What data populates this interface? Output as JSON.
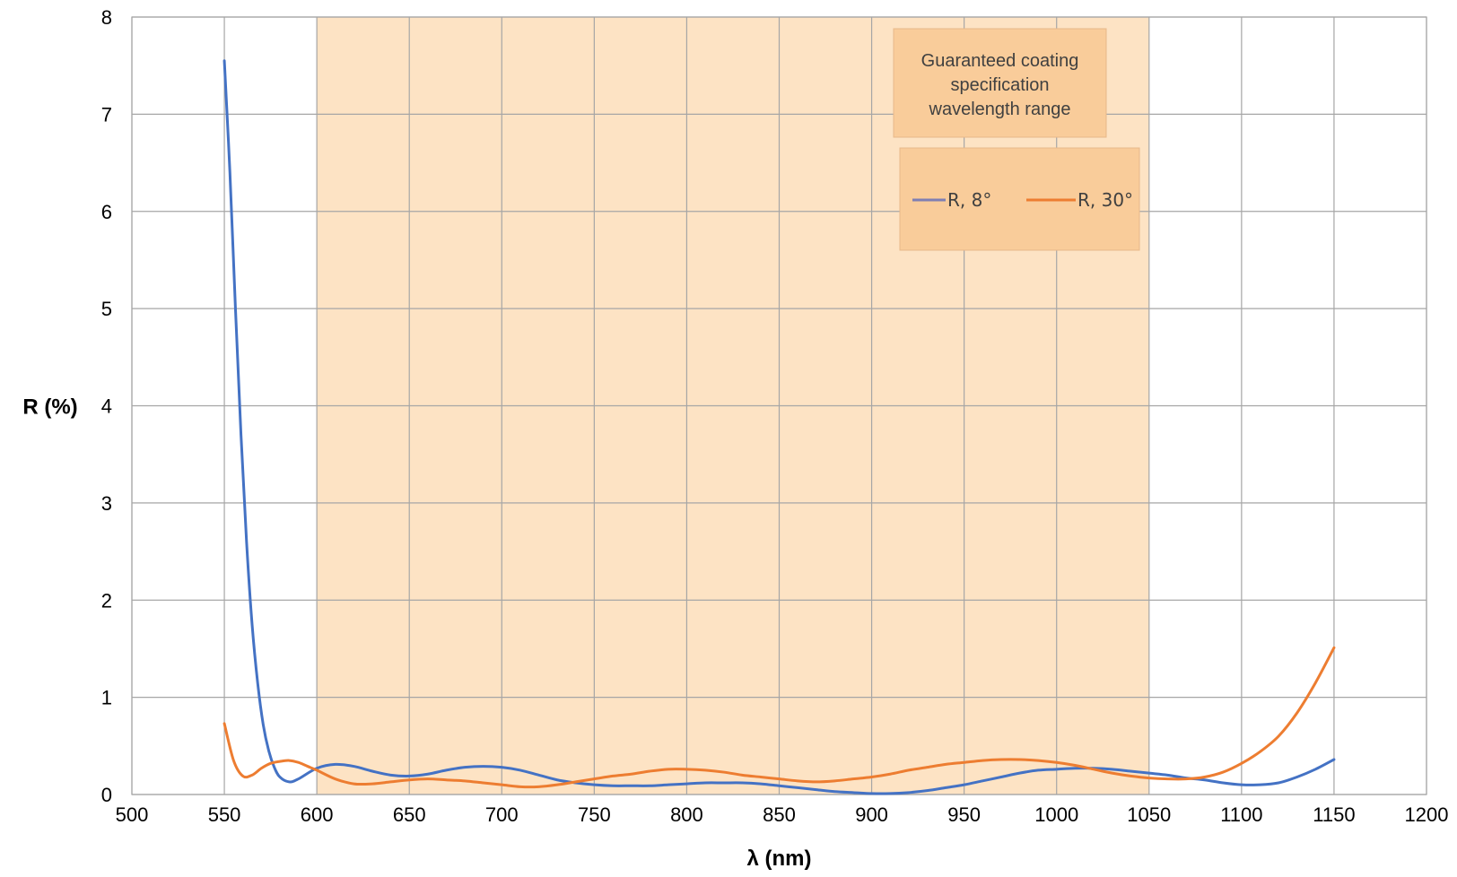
{
  "chart_data": {
    "type": "line",
    "title": "",
    "xlabel": "λ (nm)",
    "ylabel": "R (%)",
    "xlim": [
      500,
      1200
    ],
    "ylim": [
      0,
      8
    ],
    "x_ticks": [
      "500",
      "550",
      "600",
      "650",
      "700",
      "750",
      "800",
      "850",
      "900",
      "950",
      "1000",
      "1050",
      "1100",
      "1150",
      "1200"
    ],
    "y_ticks": [
      "0",
      "1",
      "2",
      "3",
      "4",
      "5",
      "6",
      "7",
      "8"
    ],
    "grid": true,
    "legend_position": "top-right",
    "shaded_region": {
      "x_range": [
        600,
        1050
      ],
      "label": "Guaranteed coating specification wavelength range",
      "label_lines": [
        "Guaranteed coating",
        "specification",
        "wavelength range"
      ],
      "color": "#fde3c4"
    },
    "series": [
      {
        "name": "R, 8°",
        "color": "#4472c4",
        "legend_color": "#7f7fb3",
        "x": [
          550,
          553,
          556,
          559,
          562,
          565,
          568,
          571,
          574,
          577,
          580,
          585,
          590,
          600,
          610,
          620,
          630,
          640,
          650,
          660,
          670,
          680,
          690,
          700,
          710,
          720,
          730,
          740,
          750,
          760,
          770,
          780,
          790,
          800,
          810,
          820,
          830,
          840,
          850,
          860,
          870,
          880,
          890,
          900,
          910,
          920,
          930,
          940,
          950,
          960,
          970,
          980,
          990,
          1000,
          1010,
          1020,
          1030,
          1040,
          1050,
          1060,
          1070,
          1080,
          1090,
          1100,
          1110,
          1120,
          1130,
          1140,
          1150
        ],
        "y": [
          7.55,
          6.4,
          5.0,
          3.7,
          2.6,
          1.75,
          1.15,
          0.72,
          0.45,
          0.28,
          0.18,
          0.13,
          0.16,
          0.27,
          0.31,
          0.29,
          0.24,
          0.2,
          0.19,
          0.21,
          0.25,
          0.28,
          0.29,
          0.28,
          0.25,
          0.2,
          0.15,
          0.12,
          0.1,
          0.09,
          0.09,
          0.09,
          0.1,
          0.11,
          0.12,
          0.12,
          0.12,
          0.11,
          0.09,
          0.07,
          0.05,
          0.03,
          0.02,
          0.01,
          0.01,
          0.02,
          0.04,
          0.07,
          0.1,
          0.14,
          0.18,
          0.22,
          0.25,
          0.26,
          0.27,
          0.27,
          0.26,
          0.24,
          0.22,
          0.2,
          0.17,
          0.15,
          0.12,
          0.1,
          0.1,
          0.12,
          0.18,
          0.26,
          0.36
        ]
      },
      {
        "name": "R, 30°",
        "color": "#ed7d31",
        "legend_color": "#ed7d31",
        "x": [
          550,
          555,
          560,
          565,
          570,
          575,
          580,
          585,
          590,
          595,
          600,
          610,
          620,
          630,
          640,
          650,
          660,
          670,
          680,
          690,
          700,
          710,
          720,
          730,
          740,
          750,
          760,
          770,
          780,
          790,
          800,
          810,
          820,
          830,
          840,
          850,
          860,
          870,
          880,
          890,
          900,
          910,
          920,
          930,
          940,
          950,
          960,
          970,
          980,
          990,
          1000,
          1010,
          1020,
          1030,
          1040,
          1050,
          1060,
          1070,
          1080,
          1090,
          1100,
          1110,
          1120,
          1130,
          1140,
          1150
        ],
        "y": [
          0.73,
          0.35,
          0.19,
          0.2,
          0.27,
          0.32,
          0.34,
          0.35,
          0.33,
          0.29,
          0.25,
          0.16,
          0.11,
          0.11,
          0.13,
          0.15,
          0.16,
          0.15,
          0.14,
          0.12,
          0.1,
          0.08,
          0.08,
          0.1,
          0.13,
          0.16,
          0.19,
          0.21,
          0.24,
          0.26,
          0.26,
          0.25,
          0.23,
          0.2,
          0.18,
          0.16,
          0.14,
          0.13,
          0.14,
          0.16,
          0.18,
          0.21,
          0.25,
          0.28,
          0.31,
          0.33,
          0.35,
          0.36,
          0.36,
          0.35,
          0.33,
          0.3,
          0.26,
          0.22,
          0.19,
          0.17,
          0.16,
          0.16,
          0.18,
          0.23,
          0.32,
          0.44,
          0.6,
          0.84,
          1.15,
          1.51
        ]
      }
    ]
  }
}
